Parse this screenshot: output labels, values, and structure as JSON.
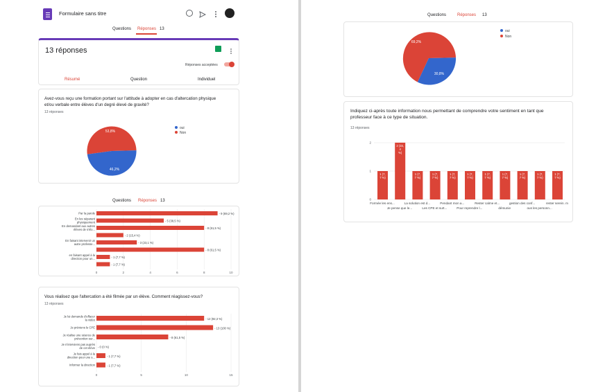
{
  "app": {
    "form_title": "Formulaire sans titre"
  },
  "tabs": {
    "questions": "Questions",
    "responses": "Réponses",
    "count": "13"
  },
  "summary": {
    "title": "13 réponses",
    "accepting_label": "Réponses acceptées",
    "views": [
      "Résumé",
      "Question",
      "Individuel"
    ]
  },
  "q1": {
    "title": "Avez-vous reçu une formation portant sur l'attitude à adopter en cas d'altercation physique et/ou verbale entre élèves d'un degré élevé de gravité?",
    "count": "13 réponses",
    "legend": [
      "oui",
      "Non"
    ],
    "slice_labels": [
      "53,8%",
      "46,2%"
    ]
  },
  "q2": {
    "rows": [
      "Par la parole",
      "En les séparant physiquement",
      "En demandant aux autres élèves de s'élo...",
      "",
      "En faisant intervenir un autre professe...",
      "",
      "en faisant appel à la direction pour un...",
      ""
    ],
    "value_labels": [
      "9 (69,2 %)",
      "5 (38,5 %)",
      "8 (61,5 %)",
      "2 (15,4 %)",
      "3 (23,1 %)",
      "8 (61,5 %)",
      "1 (7,7 %)",
      "1 (7,7 %)"
    ],
    "ticks": [
      "0",
      "2",
      "4",
      "6",
      "8",
      "10"
    ]
  },
  "q3": {
    "title": "Vous réalisez que l'altercation a été filmée par un élève. Comment réagissez-vous?",
    "count": "13 réponses",
    "rows": [
      "Je lui demande d'effacer la vidéo",
      "Je préviens le CPE",
      "Je réalise une séance de prévention sur...",
      "Je n'interviens pas auprès de cet élève",
      "Je fais appel à la direction pour une s...",
      "Informer la direction"
    ],
    "value_labels": [
      "12 (92,3 %)",
      "13 (100 %)",
      "8 (61,5 %)",
      "0 (0 %)",
      "1 (7,7 %)",
      "1 (7,7 %)"
    ],
    "ticks": [
      "0",
      "5",
      "10",
      "15"
    ]
  },
  "right_pie": {
    "legend": [
      "oui",
      "Non"
    ],
    "slice_labels": [
      "69,2%",
      "30,8%"
    ]
  },
  "q4": {
    "title": "Indiquez ci-après toute information nous permettant de comprendre votre sentiment en tant que professeur face à ce type de situation.",
    "count": "13 réponses",
    "bar_labels": [
      "1 (7, 7 %)",
      "2 (15, 4 %)",
      "1 (7, 7 %)",
      "1 (7, 7 %)",
      "1 (7, 7 %)",
      "1 (7, 7 %)",
      "1 (7, 7 %)",
      "1 (7, 7 %)",
      "1 (7, 7 %)",
      "1 (7, 7 %)",
      "1 (7, 7 %)"
    ],
    "x_top": [
      "Formée les ens...",
      "La solution est d...",
      "Pendant mon a...",
      "Rester calme et...",
      "gestion des conf...",
      "rester serein. m"
    ],
    "x_bottom": [
      "Je pense que le...",
      "Les CPE et surt...",
      "Pour reprendre l...",
      "démunie",
      "ous les personn...",
      "b"
    ],
    "ticks": [
      "0",
      "1",
      "2"
    ]
  },
  "chart_data": [
    {
      "type": "pie",
      "title": "Avez-vous reçu une formation portant sur l'attitude à adopter en cas d'altercation physique et/ou verbale entre élèves d'un degré élevé de gravité?",
      "categories": [
        "oui",
        "Non"
      ],
      "values": [
        46.2,
        53.8
      ]
    },
    {
      "type": "bar",
      "orientation": "horizontal",
      "categories": [
        "Par la parole",
        "En les séparant physiquement",
        "En demandant aux autres élèves de s'élo...",
        "",
        "En faisant intervenir un autre professe...",
        "",
        "en faisant appel à la direction pour un...",
        ""
      ],
      "values": [
        9,
        5,
        8,
        2,
        3,
        8,
        1,
        1
      ],
      "xlim": [
        0,
        10
      ]
    },
    {
      "type": "bar",
      "orientation": "horizontal",
      "title": "Vous réalisez que l'altercation a été filmée par un élève. Comment réagissez-vous?",
      "categories": [
        "Je lui demande d'effacer la vidéo",
        "Je préviens le CPE",
        "Je réalise une séance de prévention sur...",
        "Je n'interviens pas auprès de cet élève",
        "Je fais appel à la direction pour une s...",
        "Informer la direction"
      ],
      "values": [
        12,
        13,
        8,
        0,
        1,
        1
      ],
      "xlim": [
        0,
        15
      ]
    },
    {
      "type": "pie",
      "categories": [
        "oui",
        "Non"
      ],
      "values": [
        30.8,
        69.2
      ]
    },
    {
      "type": "bar",
      "title": "Indiquez ci-après toute information nous permettant de comprendre votre sentiment en tant que professeur face à ce type de situation.",
      "values": [
        1,
        2,
        1,
        1,
        1,
        1,
        1,
        1,
        1,
        1,
        1
      ],
      "ylim": [
        0,
        2
      ]
    }
  ],
  "colors": {
    "red": "#db4437",
    "blue": "#3366cc",
    "accent": "#673ab7",
    "green": "#0f9d58"
  }
}
